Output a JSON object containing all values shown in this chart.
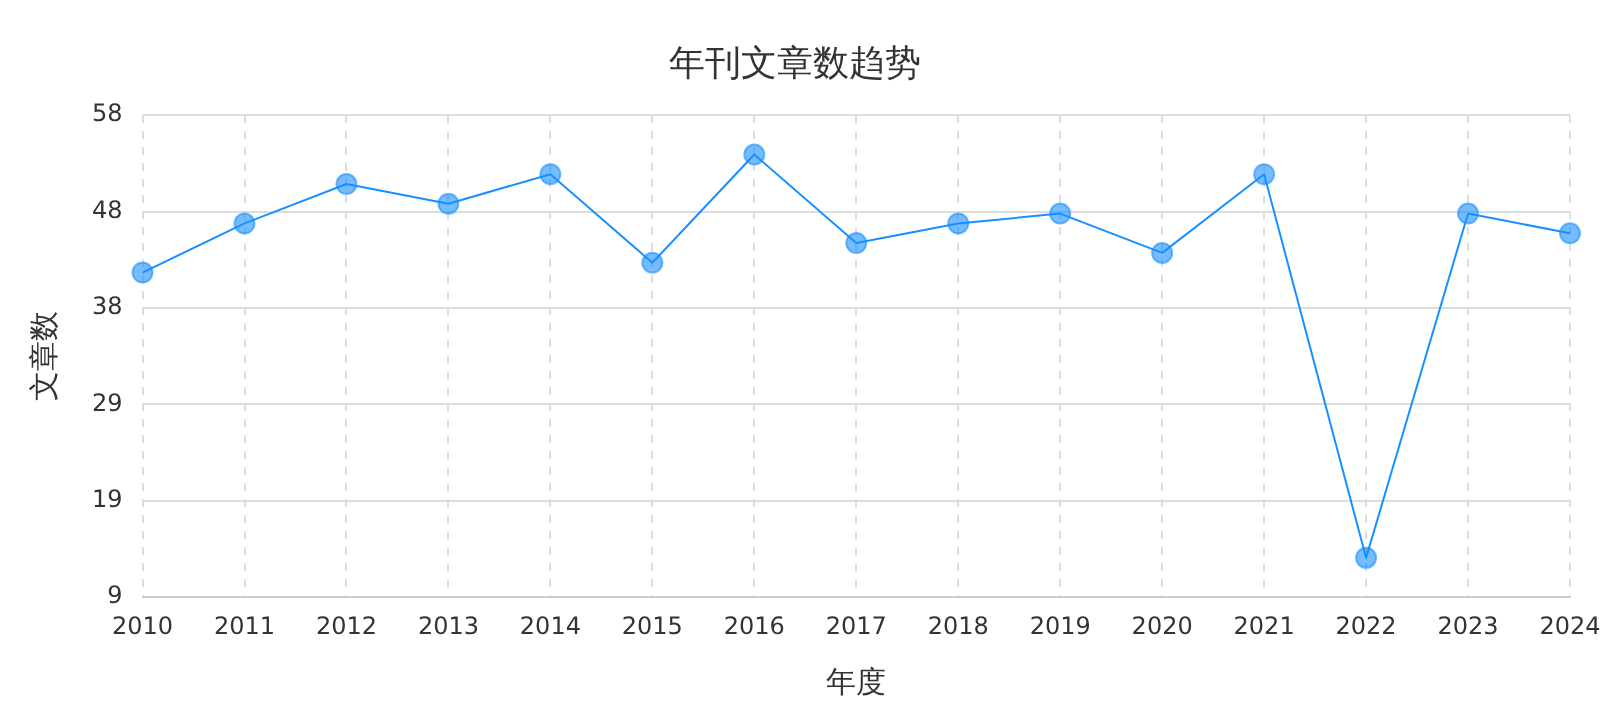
{
  "chart_data": {
    "type": "line",
    "title": "年刊文章数趋势",
    "xlabel": "年度",
    "ylabel": "文章数",
    "categories": [
      "2010",
      "2011",
      "2012",
      "2013",
      "2014",
      "2015",
      "2016",
      "2017",
      "2018",
      "2019",
      "2020",
      "2021",
      "2022",
      "2023",
      "2024"
    ],
    "series": [
      {
        "color": "#1890ff",
        "values": [
          42,
          47,
          51,
          49,
          52,
          43,
          54,
          45,
          47,
          48,
          44,
          52,
          13,
          48,
          46
        ]
      }
    ],
    "ylim": [
      9,
      58
    ],
    "yticks": [
      {
        "value": 9,
        "label": "9"
      },
      {
        "value": 18.8,
        "label": "19"
      },
      {
        "value": 28.6,
        "label": "29"
      },
      {
        "value": 38.4,
        "label": "38"
      },
      {
        "value": 48.2,
        "label": "48"
      },
      {
        "value": 58,
        "label": "58"
      }
    ],
    "grid": true,
    "legend": false,
    "marker": "circle",
    "line_style": "solid"
  }
}
